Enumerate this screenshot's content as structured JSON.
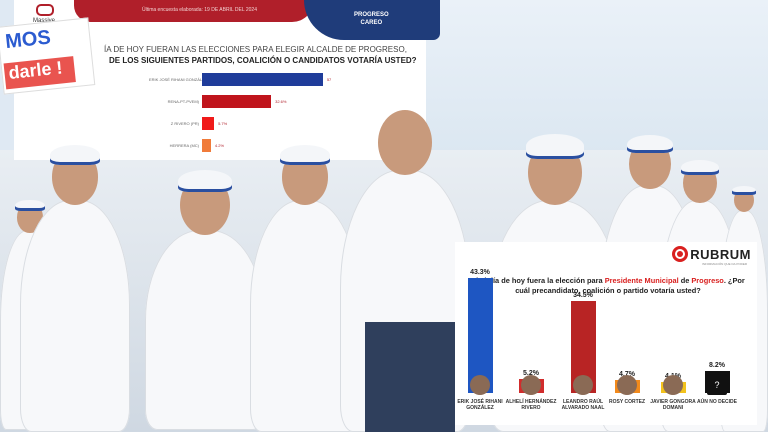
{
  "left_poll": {
    "pollster": "Massive",
    "date_line": "Última encuesta elaborada:   19 DE ABRIL DEL 2024",
    "place": [
      "PROGRESO",
      "CAREO"
    ],
    "question_line1": "ÍA DE HOY FUERAN LAS ELECCIONES PARA ELEGIR ALCALDE DE PROGRESO,",
    "question_line2": "DE LOS SIGUIENTES PARTIDOS, COALICIÓN O CANDIDATOS VOTARÍA USTED?",
    "rows": [
      {
        "label": "ERIK JOSÉ RIHANI GONZÁLEZ (PAN)",
        "value": 57,
        "value_label": "57",
        "color": "#1f3c9a"
      },
      {
        "label": "RENA-PT-PVEM)",
        "value": 32.6,
        "value_label": "32.6%",
        "color": "#c0141c"
      },
      {
        "label": "Z RIVERO (PR)",
        "value": 5.7,
        "value_label": "5.7%",
        "color": "#f01a1a"
      },
      {
        "label": "HERRERA (MC)",
        "value": 4.2,
        "value_label": "4.2%",
        "color": "#f07b3a"
      }
    ]
  },
  "sign": {
    "line1": "MOS",
    "line2": "darle !"
  },
  "right_poll": {
    "brand": "RUBRUM",
    "brand_tagline": "INFORMACIÓN QUE DA PODER",
    "question_pre": "Si el día de hoy fuera la elección para ",
    "question_highlight1": "Presidente Municipal",
    "question_mid": " de ",
    "question_highlight2": "Progreso",
    "question_post": ". ¿Por cuál precandidato, coalición o partido votaría usted?",
    "accent": "#d9201f"
  },
  "chart_data": {
    "type": "bar",
    "categories": [
      "ERIK JOSÉ RIHANI GONZÁLEZ",
      "ALHELÍ HERNÁNDEZ RIVERO",
      "LEANDRO RAÚL ALVARADO NAAL",
      "ROSY CORTEZ",
      "JAVIER GONGORA DOMANI",
      "AÚN NO DECIDE"
    ],
    "values": [
      43.3,
      5.2,
      34.5,
      4.7,
      4.1,
      8.2
    ],
    "value_labels": [
      "43.3%",
      "5.2%",
      "34.5%",
      "4.7%",
      "4.1%",
      "8.2%"
    ],
    "colors": [
      "#1e56c2",
      "#d12c2c",
      "#b82424",
      "#f28a1c",
      "#f2c21c",
      "#111111"
    ],
    "ylim": [
      0,
      50
    ]
  }
}
